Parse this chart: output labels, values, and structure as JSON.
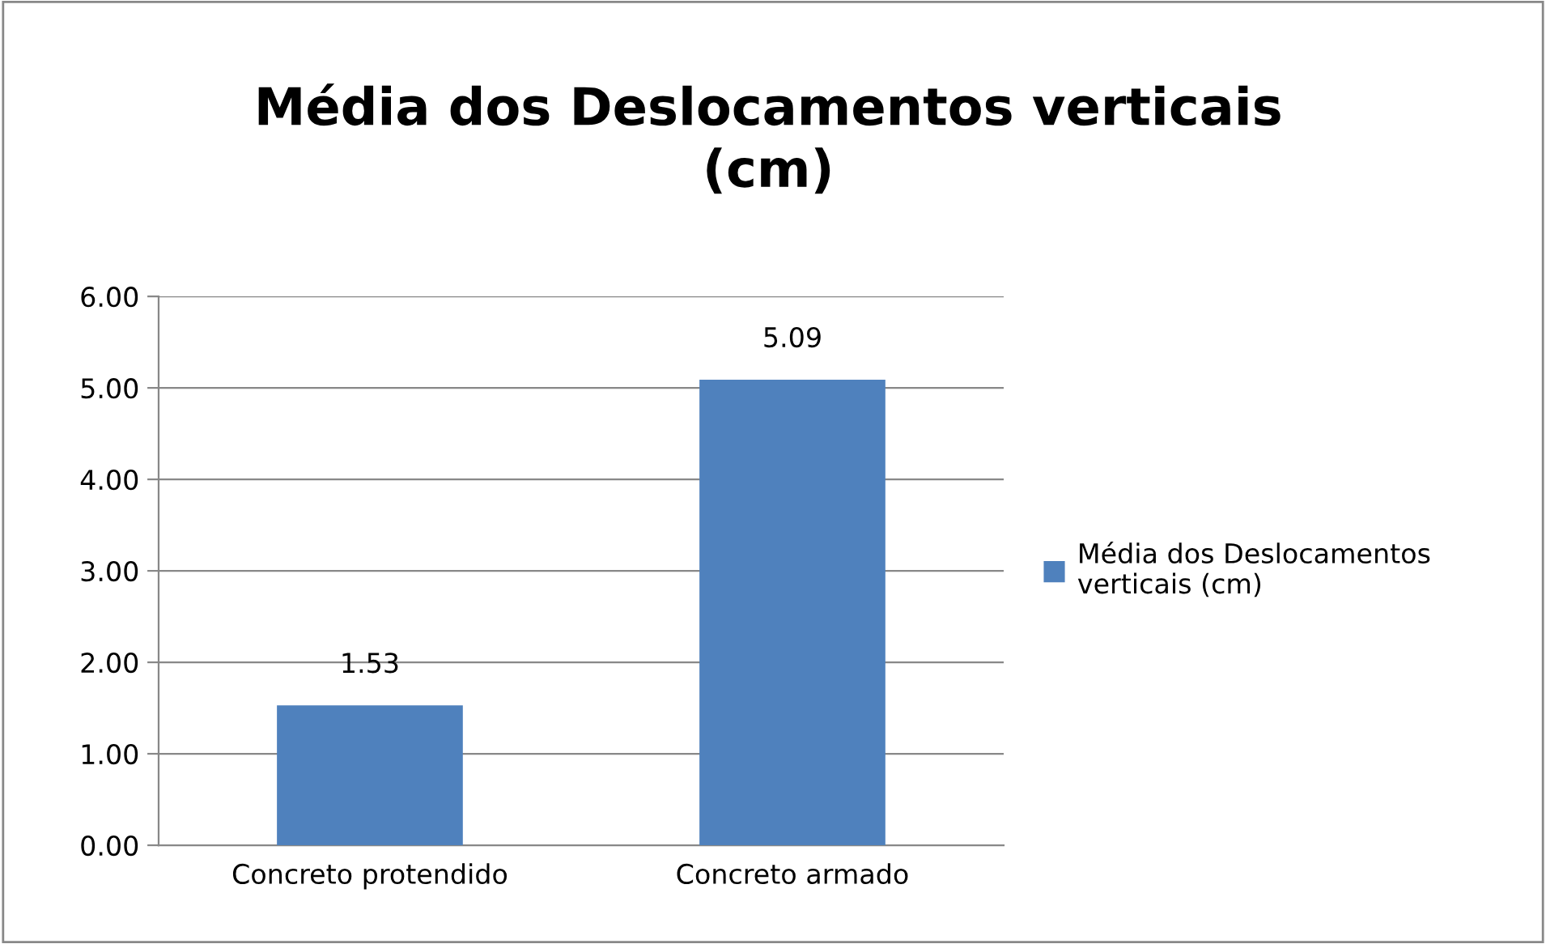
{
  "chart_data": {
    "type": "bar",
    "title": "Média dos Deslocamentos verticais (cm)",
    "categories": [
      "Concreto protendido",
      "Concreto armado"
    ],
    "series": [
      {
        "name": "Média dos Deslocamentos verticais (cm)",
        "color": "#4f81bd",
        "values": [
          1.53,
          5.09
        ]
      }
    ],
    "ylim": [
      0,
      6
    ],
    "yticks": [
      {
        "value": 0,
        "label": "0.00"
      },
      {
        "value": 1,
        "label": "1.00"
      },
      {
        "value": 2,
        "label": "2.00"
      },
      {
        "value": 3,
        "label": "3.00"
      },
      {
        "value": 4,
        "label": "4.00"
      },
      {
        "value": 5,
        "label": "5.00"
      },
      {
        "value": 6,
        "label": "6.00"
      }
    ],
    "grid": "y",
    "legend": "right",
    "data_labels": true
  }
}
